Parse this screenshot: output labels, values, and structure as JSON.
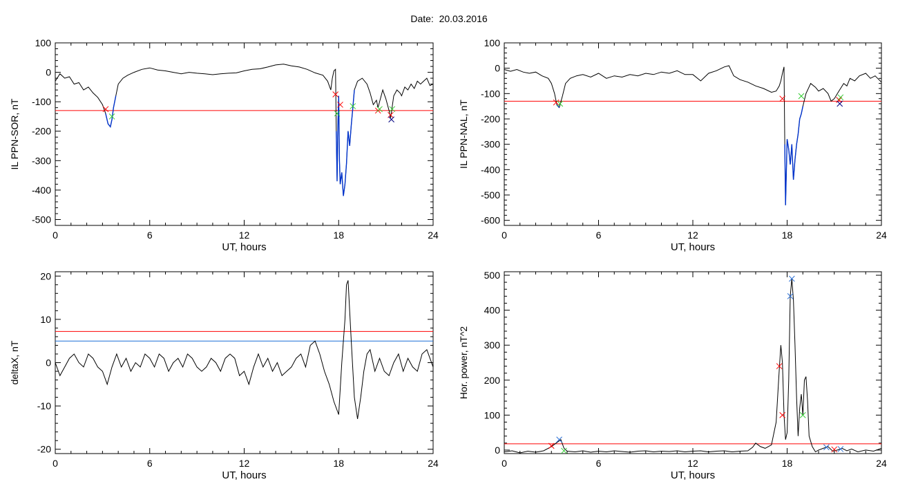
{
  "header": {
    "date_label": "Date:",
    "date_value": "20.03.2016"
  },
  "colors": {
    "trace": "#000000",
    "threshold_red": "#ff0000",
    "threshold_blue": "#1a6fd6",
    "event_blue": "#0033cc",
    "marker_red": "#ff0000",
    "marker_green": "#33cc33",
    "marker_blue": "#2a6fd6",
    "marker_navy": "#000080"
  },
  "chart_data": [
    {
      "type": "line",
      "ylabel": "IL PPN-SOR, nT",
      "xlabel": "UT, hours",
      "xlim": [
        0,
        24
      ],
      "ylim": [
        -520,
        100
      ],
      "xticks": [
        0,
        6,
        12,
        18,
        24
      ],
      "yticks": [
        100,
        0,
        -100,
        -200,
        -300,
        -400,
        -500
      ],
      "grid": false,
      "series": [
        {
          "x": [
            0,
            0.3,
            0.6,
            0.9,
            1.2,
            1.5,
            1.8,
            2.1,
            2.4,
            2.7,
            3.0,
            3.2,
            3.35,
            3.5,
            3.6,
            3.7,
            3.85,
            4.0,
            4.3,
            4.6,
            5.0,
            5.5,
            6.0,
            6.5,
            7.0,
            7.5,
            8.0,
            8.5,
            9.0,
            9.5,
            10.0,
            10.5,
            11.0,
            11.5,
            12.0,
            12.5,
            13.0,
            13.5,
            14.0,
            14.5,
            15.0,
            15.5,
            16.0,
            16.5,
            17.0,
            17.3,
            17.5,
            17.6,
            17.7,
            17.8,
            17.85,
            17.9,
            17.95,
            18.0,
            18.05,
            18.1,
            18.2,
            18.3,
            18.4,
            18.5,
            18.6,
            18.7,
            18.8,
            18.9,
            19.0,
            19.2,
            19.5,
            19.8,
            20.0,
            20.2,
            20.4,
            20.5,
            20.6,
            20.8,
            21.0,
            21.2,
            21.3,
            21.5,
            21.7,
            21.9,
            22.0,
            22.2,
            22.4,
            22.6,
            22.8,
            23.0,
            23.2,
            23.4,
            23.6,
            23.8,
            24.0
          ],
          "y": [
            -30,
            -5,
            -20,
            -15,
            -40,
            -35,
            -60,
            -50,
            -70,
            -85,
            -110,
            -140,
            -175,
            -185,
            -160,
            -120,
            -80,
            -40,
            -20,
            -10,
            0,
            10,
            15,
            8,
            5,
            0,
            -5,
            0,
            -3,
            -5,
            -8,
            -5,
            -3,
            -2,
            5,
            10,
            12,
            18,
            25,
            28,
            22,
            18,
            10,
            -2,
            -10,
            -30,
            -60,
            -20,
            5,
            10,
            -200,
            -370,
            -180,
            -80,
            -300,
            -380,
            -340,
            -420,
            -380,
            -310,
            -200,
            -250,
            -180,
            -120,
            -60,
            -30,
            -20,
            -40,
            -70,
            -110,
            -95,
            -120,
            -100,
            -60,
            -90,
            -130,
            -155,
            -80,
            -60,
            -70,
            -80,
            -50,
            -60,
            -40,
            -55,
            -30,
            -40,
            -30,
            -20,
            -45,
            -40
          ],
          "event_ranges": [
            [
              3.2,
              3.85
            ],
            [
              17.85,
              19.0
            ]
          ]
        }
      ],
      "thresholds": [
        {
          "value": -130,
          "color": "red"
        }
      ],
      "markers": [
        {
          "x": 3.2,
          "y": -125,
          "color": "red",
          "symbol": "x"
        },
        {
          "x": 3.6,
          "y": -150,
          "color": "green",
          "symbol": "x"
        },
        {
          "x": 17.8,
          "y": -75,
          "color": "red",
          "symbol": "x"
        },
        {
          "x": 17.9,
          "y": -140,
          "color": "green",
          "symbol": "x"
        },
        {
          "x": 18.1,
          "y": -110,
          "color": "red",
          "symbol": "x"
        },
        {
          "x": 18.9,
          "y": -115,
          "color": "green",
          "symbol": "x"
        },
        {
          "x": 20.5,
          "y": -130,
          "color": "red",
          "symbol": "x"
        },
        {
          "x": 20.6,
          "y": -125,
          "color": "green",
          "symbol": "x"
        },
        {
          "x": 21.3,
          "y": -145,
          "color": "red",
          "symbol": "x"
        },
        {
          "x": 21.4,
          "y": -125,
          "color": "green",
          "symbol": "x"
        },
        {
          "x": 21.35,
          "y": -160,
          "color": "navy",
          "symbol": "x"
        }
      ]
    },
    {
      "type": "line",
      "ylabel": "IL PPN-NAL, nT",
      "xlabel": "UT, hours",
      "xlim": [
        0,
        24
      ],
      "ylim": [
        -620,
        100
      ],
      "xticks": [
        0,
        6,
        12,
        18,
        24
      ],
      "yticks": [
        100,
        0,
        -100,
        -200,
        -300,
        -400,
        -500,
        -600
      ],
      "grid": false,
      "series": [
        {
          "x": [
            0,
            0.4,
            0.8,
            1.2,
            1.6,
            2.0,
            2.4,
            2.8,
            3.0,
            3.2,
            3.35,
            3.5,
            3.7,
            3.9,
            4.2,
            4.6,
            5.0,
            5.5,
            6.0,
            6.5,
            7.0,
            7.5,
            8.0,
            8.5,
            9.0,
            9.5,
            10.0,
            10.5,
            11.0,
            11.5,
            12.0,
            12.5,
            13.0,
            13.5,
            14.0,
            14.3,
            14.6,
            15.0,
            15.5,
            16.0,
            16.5,
            17.0,
            17.3,
            17.5,
            17.6,
            17.7,
            17.8,
            17.85,
            17.9,
            18.0,
            18.1,
            18.2,
            18.3,
            18.4,
            18.5,
            18.6,
            18.7,
            18.8,
            18.9,
            19.0,
            19.2,
            19.5,
            19.8,
            20.0,
            20.3,
            20.6,
            20.8,
            21.0,
            21.2,
            21.4,
            21.6,
            21.8,
            22.0,
            22.3,
            22.6,
            23.0,
            23.3,
            23.6,
            24.0
          ],
          "y": [
            -5,
            -12,
            -5,
            -15,
            -20,
            -15,
            -30,
            -40,
            -60,
            -100,
            -145,
            -155,
            -110,
            -60,
            -40,
            -30,
            -25,
            -35,
            -20,
            -40,
            -30,
            -35,
            -25,
            -30,
            -20,
            -25,
            -15,
            -20,
            -10,
            -25,
            -25,
            -50,
            -20,
            -10,
            5,
            10,
            -30,
            -45,
            -55,
            -70,
            -80,
            -95,
            -90,
            -70,
            -50,
            -20,
            5,
            -300,
            -540,
            -280,
            -320,
            -380,
            -300,
            -440,
            -360,
            -300,
            -260,
            -200,
            -180,
            -150,
            -100,
            -60,
            -75,
            -90,
            -80,
            -100,
            -130,
            -120,
            -100,
            -80,
            -60,
            -70,
            -40,
            -50,
            -30,
            -20,
            -40,
            -30,
            -55
          ],
          "event_ranges": [
            [
              3.3,
              3.6
            ],
            [
              17.85,
              19.0
            ]
          ]
        }
      ],
      "thresholds": [
        {
          "value": -130,
          "color": "red"
        }
      ],
      "markers": [
        {
          "x": 3.3,
          "y": -135,
          "color": "red",
          "symbol": "x"
        },
        {
          "x": 3.55,
          "y": -140,
          "color": "green",
          "symbol": "x"
        },
        {
          "x": 17.7,
          "y": -120,
          "color": "red",
          "symbol": "x"
        },
        {
          "x": 18.9,
          "y": -110,
          "color": "green",
          "symbol": "x"
        },
        {
          "x": 21.3,
          "y": -125,
          "color": "red",
          "symbol": "x"
        },
        {
          "x": 21.35,
          "y": -140,
          "color": "navy",
          "symbol": "x"
        },
        {
          "x": 21.4,
          "y": -115,
          "color": "green",
          "symbol": "x"
        }
      ]
    },
    {
      "type": "line",
      "ylabel": "deltaX, nT",
      "xlabel": "UT, hours",
      "xlim": [
        0,
        24
      ],
      "ylim": [
        -21,
        21
      ],
      "xticks": [
        0,
        6,
        12,
        18,
        24
      ],
      "yticks": [
        20,
        10,
        0,
        -10,
        -20
      ],
      "grid": false,
      "series": [
        {
          "x": [
            0,
            0.3,
            0.6,
            0.9,
            1.2,
            1.5,
            1.8,
            2.1,
            2.4,
            2.7,
            3.0,
            3.3,
            3.6,
            3.9,
            4.2,
            4.5,
            4.8,
            5.1,
            5.4,
            5.7,
            6.0,
            6.3,
            6.6,
            6.9,
            7.2,
            7.5,
            7.8,
            8.1,
            8.4,
            8.7,
            9.0,
            9.3,
            9.6,
            9.9,
            10.2,
            10.5,
            10.8,
            11.1,
            11.4,
            11.7,
            12.0,
            12.3,
            12.6,
            12.9,
            13.2,
            13.5,
            13.8,
            14.1,
            14.4,
            14.7,
            15.0,
            15.3,
            15.6,
            15.9,
            16.2,
            16.5,
            16.8,
            17.1,
            17.4,
            17.7,
            18.0,
            18.2,
            18.4,
            18.5,
            18.6,
            18.8,
            19.0,
            19.2,
            19.4,
            19.6,
            19.8,
            20.0,
            20.3,
            20.6,
            20.9,
            21.2,
            21.5,
            21.8,
            22.1,
            22.4,
            22.7,
            23.0,
            23.3,
            23.6,
            24.0
          ],
          "y": [
            0,
            -3,
            -1,
            1,
            2,
            0,
            -1,
            2,
            1,
            -1,
            -2,
            -5,
            -1,
            2,
            -1,
            1,
            -2,
            0,
            -1,
            2,
            1,
            -1,
            2,
            1,
            -2,
            0,
            1,
            -1,
            2,
            1,
            -1,
            -2,
            -1,
            1,
            0,
            -2,
            1,
            2,
            1,
            -3,
            -2,
            -5,
            -1,
            2,
            -1,
            1,
            -2,
            0,
            -3,
            -2,
            -1,
            1,
            2,
            -1,
            4,
            5,
            2,
            -2,
            -5,
            -9,
            -12,
            0,
            10,
            18,
            19,
            5,
            -8,
            -13,
            -8,
            -2,
            2,
            3,
            -2,
            1,
            -2,
            -3,
            0,
            2,
            -2,
            1,
            -1,
            -2,
            2,
            3,
            -1
          ]
        }
      ],
      "thresholds": [
        {
          "value": 7.2,
          "color": "red"
        },
        {
          "value": 5.0,
          "color": "blue"
        }
      ],
      "markers": []
    },
    {
      "type": "line",
      "ylabel": "Hor. power, nT^2",
      "xlabel": "UT, hours",
      "xlim": [
        0,
        24
      ],
      "ylim": [
        -10,
        510
      ],
      "xticks": [
        0,
        6,
        12,
        18,
        24
      ],
      "yticks": [
        500,
        400,
        300,
        200,
        100,
        0
      ],
      "grid": false,
      "series": [
        {
          "x": [
            0,
            0.5,
            1.0,
            1.5,
            2.0,
            2.5,
            3.0,
            3.3,
            3.6,
            3.8,
            4.0,
            4.5,
            5.0,
            5.5,
            6.0,
            6.5,
            7.0,
            7.5,
            8.0,
            8.5,
            9.0,
            9.5,
            10.0,
            10.5,
            11.0,
            11.5,
            12.0,
            12.5,
            13.0,
            13.5,
            14.0,
            14.5,
            15.0,
            15.5,
            15.8,
            16.0,
            16.3,
            16.6,
            17.0,
            17.3,
            17.5,
            17.6,
            17.7,
            17.8,
            17.9,
            18.0,
            18.1,
            18.2,
            18.3,
            18.4,
            18.5,
            18.6,
            18.7,
            18.8,
            18.9,
            19.0,
            19.1,
            19.2,
            19.3,
            19.4,
            19.6,
            19.8,
            20.0,
            20.3,
            20.6,
            20.9,
            21.2,
            21.5,
            21.8,
            22.1,
            22.5,
            23.0,
            23.5,
            24.0
          ],
          "y": [
            -5,
            -2,
            -8,
            -3,
            -6,
            -2,
            10,
            20,
            30,
            5,
            -3,
            -5,
            -2,
            -6,
            -3,
            -5,
            -2,
            -4,
            -6,
            -3,
            -2,
            -5,
            -3,
            -4,
            -2,
            -5,
            -3,
            -2,
            -5,
            -3,
            -2,
            -5,
            -3,
            -2,
            8,
            20,
            10,
            5,
            15,
            80,
            230,
            300,
            250,
            100,
            30,
            50,
            200,
            440,
            490,
            430,
            300,
            150,
            40,
            120,
            160,
            100,
            200,
            210,
            140,
            40,
            10,
            -5,
            0,
            5,
            10,
            -3,
            0,
            5,
            -2,
            3,
            -5,
            0,
            -3,
            5
          ]
        }
      ],
      "thresholds": [
        {
          "value": 18,
          "color": "red"
        }
      ],
      "markers": [
        {
          "x": 3.0,
          "y": 12,
          "color": "red",
          "symbol": "x"
        },
        {
          "x": 3.5,
          "y": 30,
          "color": "blue",
          "symbol": "x"
        },
        {
          "x": 3.8,
          "y": -2,
          "color": "green",
          "symbol": "x"
        },
        {
          "x": 17.5,
          "y": 240,
          "color": "red",
          "symbol": "x"
        },
        {
          "x": 17.7,
          "y": 100,
          "color": "red",
          "symbol": "x"
        },
        {
          "x": 18.2,
          "y": 440,
          "color": "blue",
          "symbol": "x"
        },
        {
          "x": 18.3,
          "y": 490,
          "color": "blue",
          "symbol": "x"
        },
        {
          "x": 19.0,
          "y": 100,
          "color": "green",
          "symbol": "x"
        },
        {
          "x": 20.5,
          "y": 8,
          "color": "blue",
          "symbol": "x"
        },
        {
          "x": 21.0,
          "y": 2,
          "color": "red",
          "symbol": "x"
        },
        {
          "x": 21.4,
          "y": 3,
          "color": "blue",
          "symbol": "x"
        }
      ]
    }
  ]
}
